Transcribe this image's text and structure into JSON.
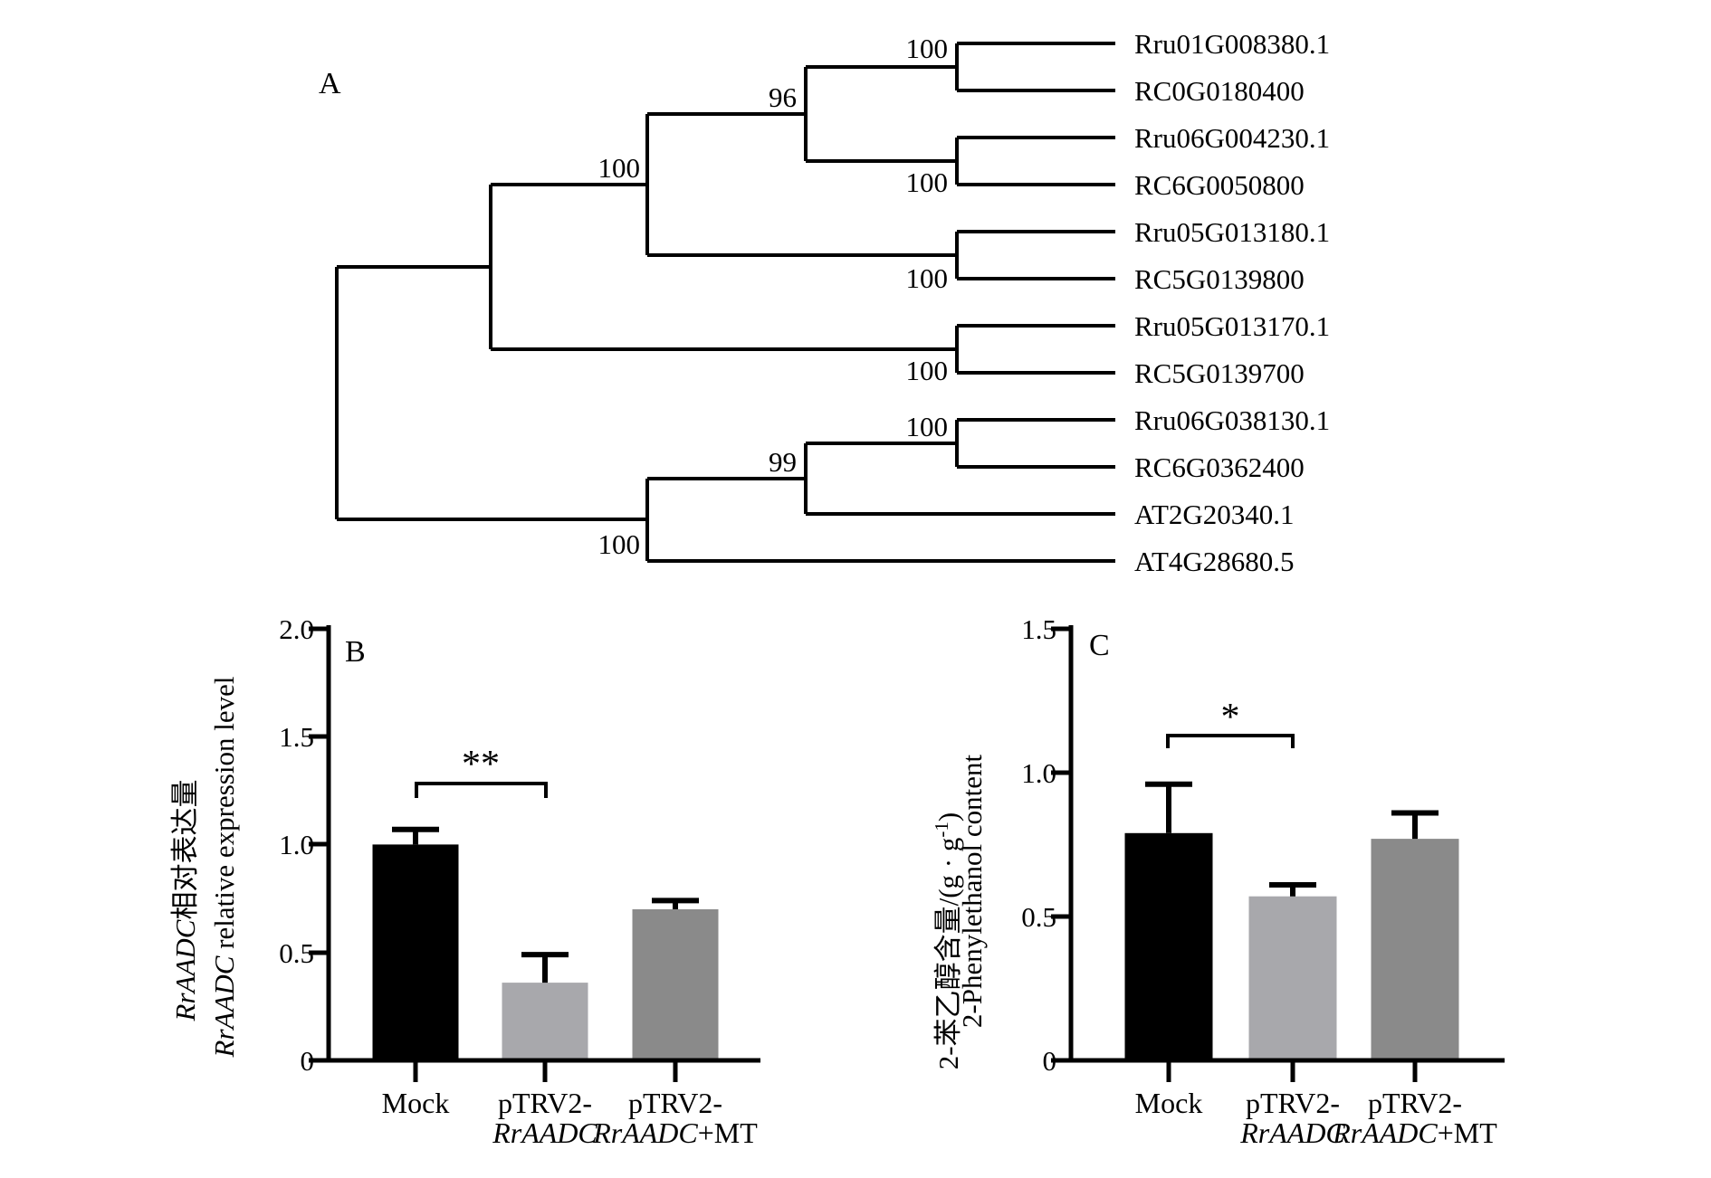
{
  "panels": {
    "a": {
      "label": "A"
    },
    "b": {
      "label": "B"
    },
    "c": {
      "label": "C"
    }
  },
  "colors": {
    "line": "#000000",
    "bar_black": "#000000",
    "bar_light_gray": "#a8a8ac",
    "bar_gray": "#8a8a8a"
  },
  "chart_data": [
    {
      "type": "tree",
      "panel": "A",
      "leaves": [
        "Rru01G008380.1",
        "RC0G0180400",
        "Rru06G004230.1",
        "RC6G0050800",
        "Rru05G013180.1",
        "RC5G0139800",
        "Rru05G013170.1",
        "RC5G0139700",
        "Rru06G038130.1",
        "RC6G0362400",
        "AT2G20340.1",
        "AT4G28680.5"
      ],
      "bootstrap_labels": [
        {
          "value": "100",
          "node": "Rru01G008380.1 + RC0G0180400"
        },
        {
          "value": "96",
          "node": "(Rru01G008380.1,RC0G0180400) + (Rru06G004230.1,RC6G0050800)"
        },
        {
          "value": "100",
          "node": "Rru06G004230.1 + RC6G0050800"
        },
        {
          "value": "100",
          "node": "clade96 + (Rru05G013180.1,RC5G0139800)"
        },
        {
          "value": "100",
          "node": "Rru05G013180.1 + RC5G0139800"
        },
        {
          "value": "100",
          "node": "Rru05G013170.1 + RC5G0139700"
        },
        {
          "value": "100",
          "node": "Rru06G038130.1 + RC6G0362400"
        },
        {
          "value": "99",
          "node": "(Rru06G038130.1,RC6G0362400) + AT2G20340.1"
        },
        {
          "value": "100",
          "node": "clade99 + AT4G28680.5"
        }
      ],
      "newick": "(((((Rru01G008380.1,RC0G0180400)100,(Rru06G004230.1,RC6G0050800)100)96,(Rru05G013180.1,RC5G0139800)100)100,(Rru05G013170.1,RC5G0139700)100),(((Rru06G038130.1,RC6G0362400)100,AT2G20340.1)99,AT4G28680.5)100);"
    },
    {
      "type": "bar",
      "panel": "B",
      "categories": [
        {
          "line1": "Mock",
          "line2_italic": "",
          "line2_suffix": ""
        },
        {
          "line1": "pTRV2-",
          "line2_italic": "RrAADC",
          "line2_suffix": ""
        },
        {
          "line1": "pTRV2-",
          "line2_italic": "RrAADC",
          "line2_suffix": "+MT"
        }
      ],
      "values": [
        1.0,
        0.36,
        0.7
      ],
      "errors_plus": [
        0.07,
        0.13,
        0.04
      ],
      "bar_colors": [
        "#000000",
        "#a8a8ac",
        "#8a8a8a"
      ],
      "ylim": [
        0,
        2.0
      ],
      "yticks": [
        0,
        0.5,
        1.0,
        1.5,
        2.0
      ],
      "ytick_labels": [
        "0",
        "0.5",
        "1.0",
        "1.5",
        "2.0"
      ],
      "ylabel_zh_italic": "RrAADC",
      "ylabel_zh_rest": "相对表达量",
      "ylabel_en_italic": "RrAADC",
      "ylabel_en_rest": " relative expression level",
      "significance": {
        "label": "**",
        "between": [
          "Mock",
          "pTRV2-RrAADC"
        ]
      }
    },
    {
      "type": "bar",
      "panel": "C",
      "categories": [
        {
          "line1": "Mock",
          "line2_italic": "",
          "line2_suffix": ""
        },
        {
          "line1": "pTRV2-",
          "line2_italic": "RrAADC",
          "line2_suffix": ""
        },
        {
          "line1": "pTRV2-",
          "line2_italic": "RrAADC",
          "line2_suffix": "+MT"
        }
      ],
      "values": [
        0.79,
        0.57,
        0.77
      ],
      "errors_plus": [
        0.17,
        0.04,
        0.09
      ],
      "bar_colors": [
        "#000000",
        "#a8a8ac",
        "#8a8a8a"
      ],
      "ylim": [
        0,
        1.5
      ],
      "yticks": [
        0,
        0.5,
        1.0,
        1.5
      ],
      "ytick_labels": [
        "0",
        "0.5",
        "1.0",
        "1.5"
      ],
      "ylabel_zh_prefix": "2-苯乙醇含量/(g · g",
      "ylabel_zh_sup": "-1",
      "ylabel_zh_suffix": ")",
      "ylabel_en": "2-Phenylethanol content",
      "significance": {
        "label": "*",
        "between": [
          "Mock",
          "pTRV2-RrAADC"
        ]
      }
    }
  ]
}
